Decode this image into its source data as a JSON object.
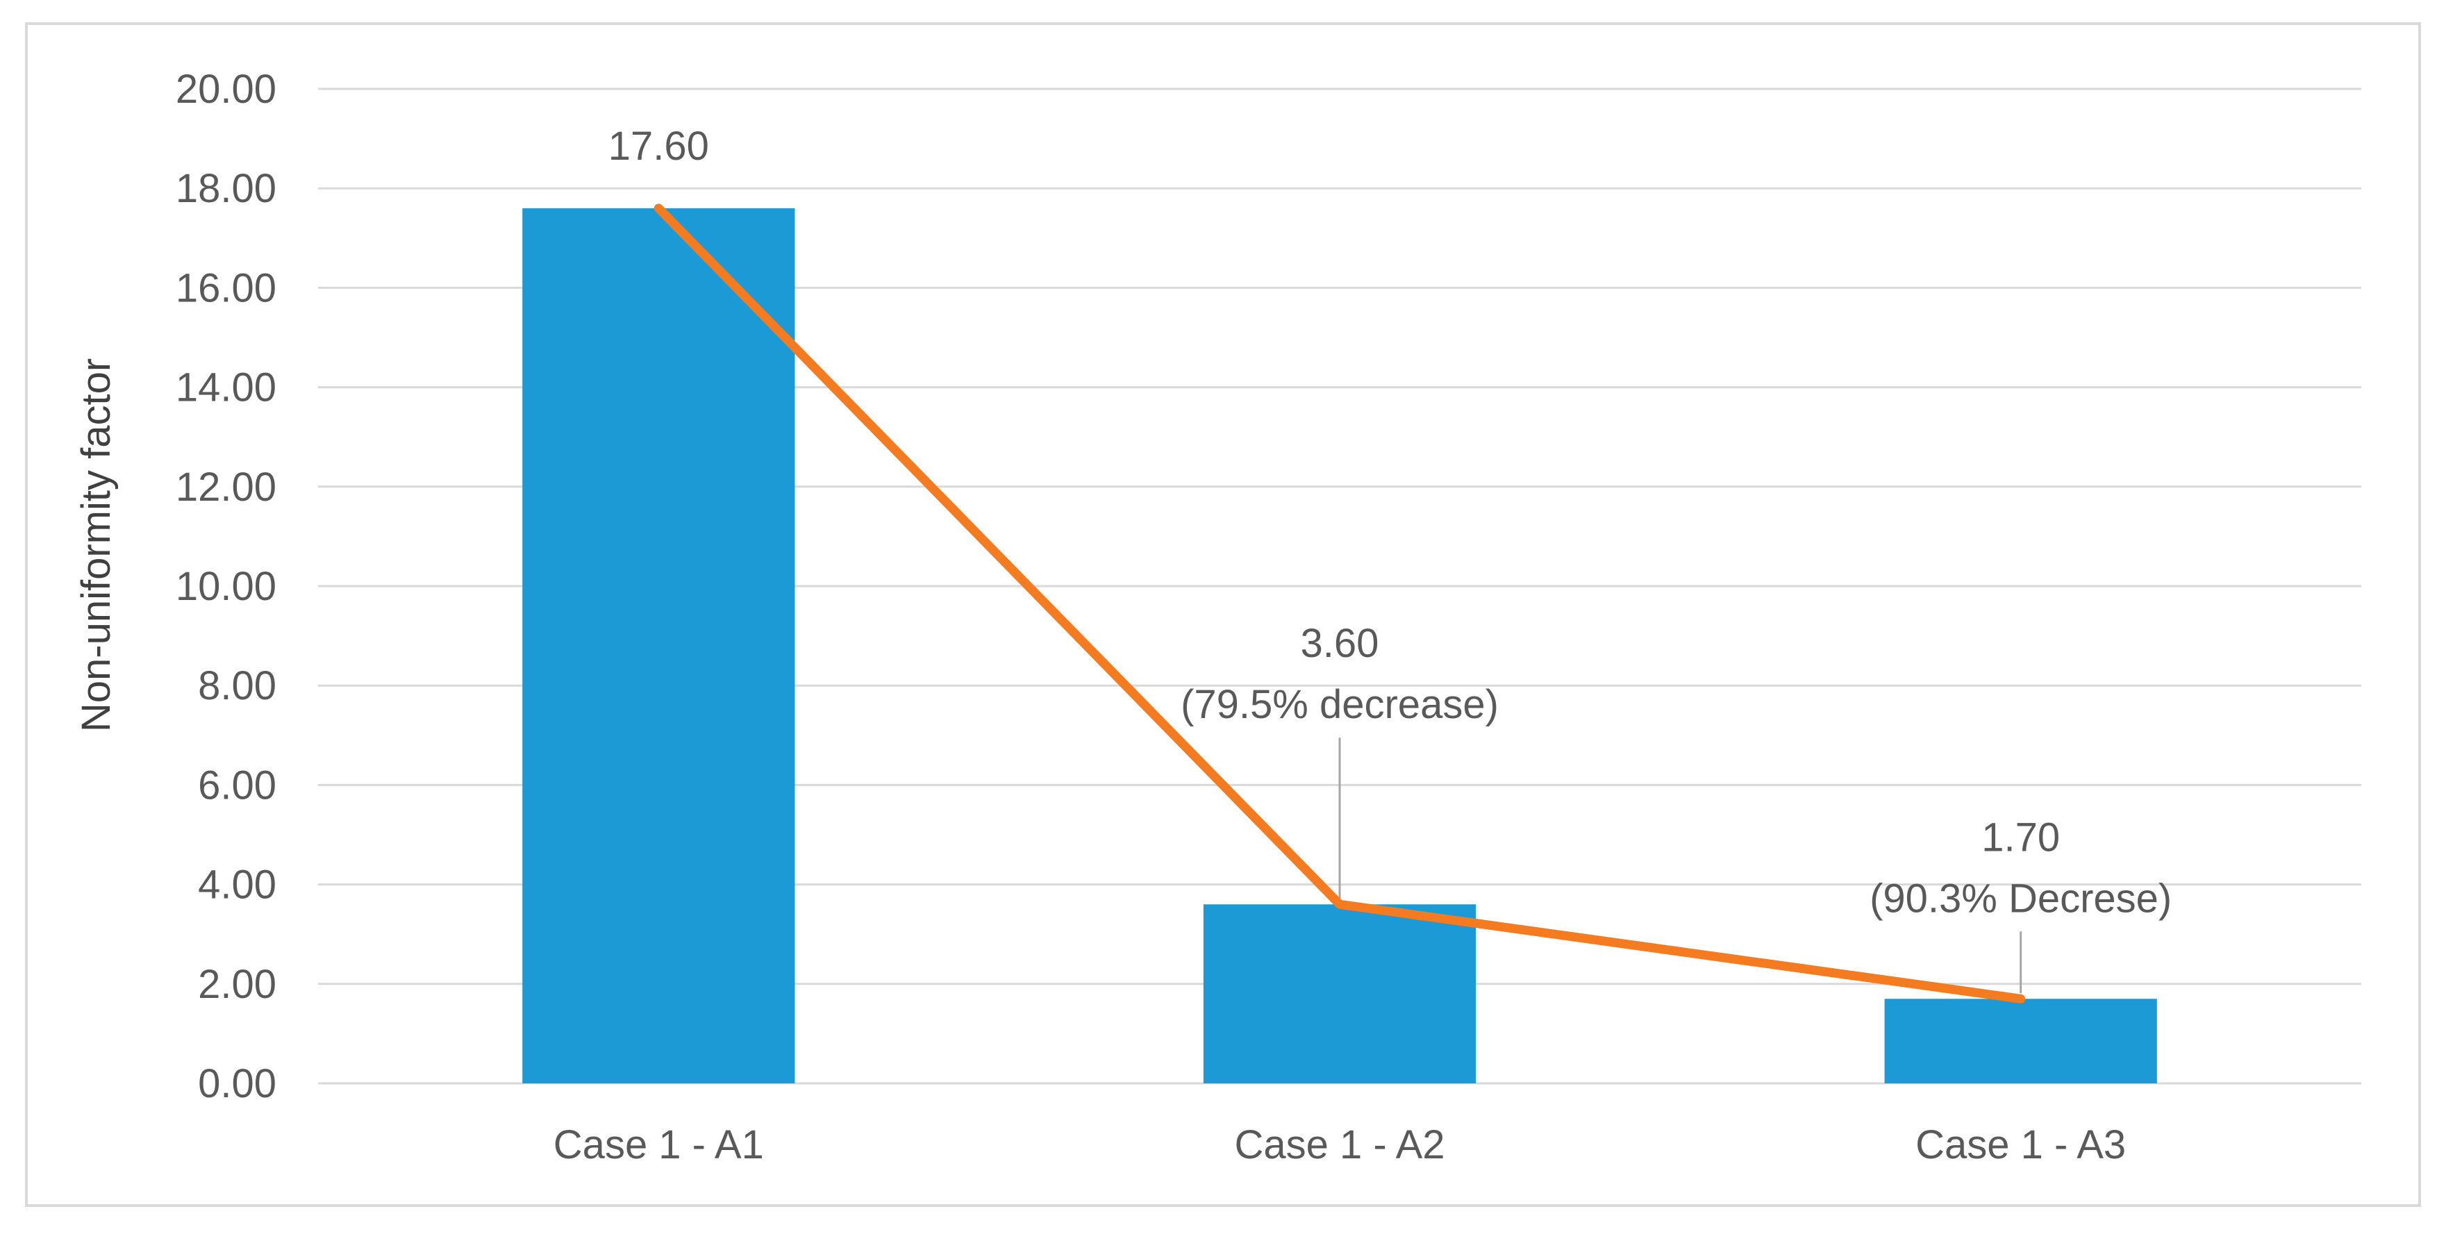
{
  "chart_data": {
    "type": "bar",
    "categories": [
      "Case 1 - A1",
      "Case 1 - A2",
      "Case 1 - A3"
    ],
    "values": [
      17.6,
      3.6,
      1.7
    ],
    "line_overlay_values": [
      17.6,
      3.6,
      1.7
    ],
    "data_labels": [
      [
        "17.60"
      ],
      [
        "3.60",
        "(79.5% decrease)"
      ],
      [
        "1.70",
        "(90.3% Decrese)"
      ]
    ],
    "y_ticks": [
      "0.00",
      "2.00",
      "4.00",
      "6.00",
      "8.00",
      "10.00",
      "12.00",
      "14.00",
      "16.00",
      "18.00",
      "20.00"
    ],
    "ylim": [
      0,
      20
    ],
    "ylabel": "Non-uniformity factor",
    "xlabel": "",
    "grid": true,
    "colors": {
      "bar": "#1b9ad6",
      "line": "#f47b20",
      "grid": "#d9d9d9",
      "leader": "#a6a6a6"
    }
  }
}
